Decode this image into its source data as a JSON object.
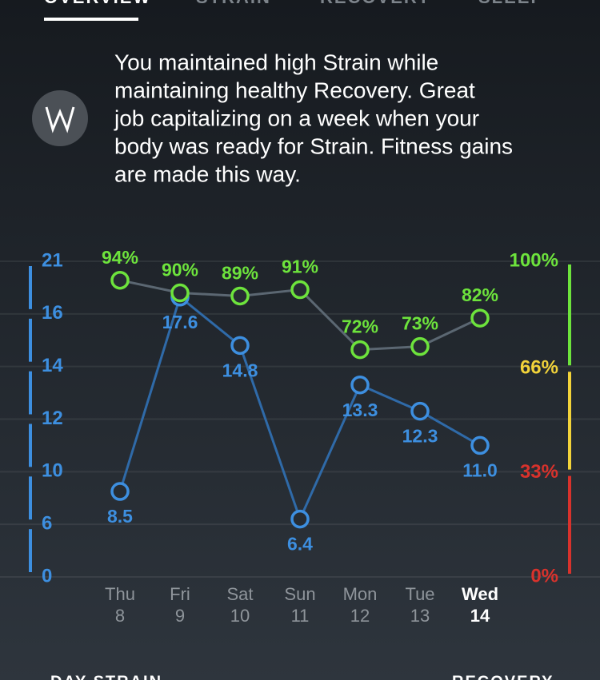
{
  "tabs": [
    "OVERVIEW",
    "STRAIN",
    "RECOVERY",
    "SLEEP"
  ],
  "active_tab": 0,
  "message": [
    "You maintained high Strain while",
    "maintaining healthy Recovery. Great",
    "job capitalizing on a week when your",
    "body was ready for Strain. Fitness gains",
    "are made this way."
  ],
  "chart_data": {
    "type": "line",
    "categories": [
      "Thu",
      "Fri",
      "Sat",
      "Sun",
      "Mon",
      "Tue",
      "Wed"
    ],
    "dates": [
      "8",
      "9",
      "10",
      "11",
      "12",
      "13",
      "14"
    ],
    "highlighted_category": "Wed",
    "ylim": [
      0,
      21
    ],
    "yticks": [
      0,
      6,
      10,
      12,
      14,
      16,
      21
    ],
    "y2lim": [
      0,
      100
    ],
    "y2ticks": [
      {
        "value": 0,
        "label": "0%"
      },
      {
        "value": 33,
        "label": "33%"
      },
      {
        "value": 66,
        "label": "66%"
      },
      {
        "value": 100,
        "label": "100%"
      }
    ],
    "y2tick_colors": [
      "#d8322c",
      "#d8322c",
      "#f2d33a",
      "#6de33c"
    ],
    "grid": true,
    "series": [
      {
        "color": "#3d8fe0",
        "line_color": "#2f6aa8",
        "values": [
          8.5,
          17.6,
          14.8,
          6.4,
          13.3,
          12.3,
          11.0
        ],
        "value_labels": [
          "8.5",
          "17.6",
          "14.8",
          "6.4",
          "13.3",
          "12.3",
          "11.0"
        ]
      },
      {
        "color": "#6de33c",
        "line_color": "#5b6772",
        "axis": "y2",
        "values": [
          94,
          90,
          89,
          91,
          72,
          73,
          82
        ],
        "value_labels": [
          "94%",
          "90%",
          "89%",
          "91%",
          "72%",
          "73%",
          "82%"
        ]
      }
    ]
  },
  "footer": [
    "DAY STRAIN",
    "RECOVERY"
  ]
}
